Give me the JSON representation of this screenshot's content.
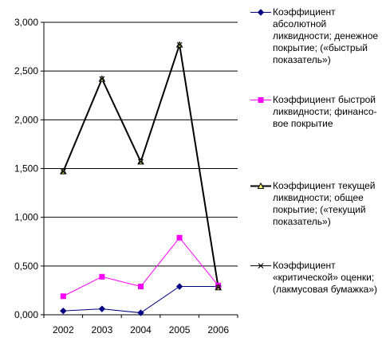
{
  "chart_data": {
    "type": "line",
    "title": "",
    "xlabel": "",
    "ylabel": "",
    "categories": [
      "2002",
      "2003",
      "2004",
      "2005",
      "2006"
    ],
    "ylim": [
      0,
      3
    ],
    "yticks": [
      "0,000",
      "0,500",
      "1,000",
      "1,500",
      "2,000",
      "2,500",
      "3,000"
    ],
    "grid": "horizontal",
    "legend_position": "right",
    "series": [
      {
        "name": "Коэффициент абсолютной ликвидности; денежное покрытие; («быстрый показатель»)",
        "values": [
          0.04,
          0.06,
          0.02,
          0.29,
          0.29
        ],
        "color": "#000080",
        "marker": "diamond"
      },
      {
        "name": "Коэффициент быстрой ликвидности; финансо-вое покрытие",
        "values": [
          0.19,
          0.39,
          0.29,
          0.79,
          0.3
        ],
        "color": "#ff00ff",
        "marker": "square"
      },
      {
        "name": "Коэффициент текущей ликвидности; общее покрытие; («текущий показатель»)",
        "values": [
          1.47,
          2.42,
          1.57,
          2.77,
          0.28
        ],
        "color": "#000000",
        "marker": "triangle"
      },
      {
        "name": "Коэффициент «критической» оценки; (лакмусовая бумажка»)",
        "values": [
          1.47,
          2.42,
          1.57,
          2.77,
          0.28
        ],
        "color": "#000000",
        "marker": "x"
      }
    ]
  }
}
